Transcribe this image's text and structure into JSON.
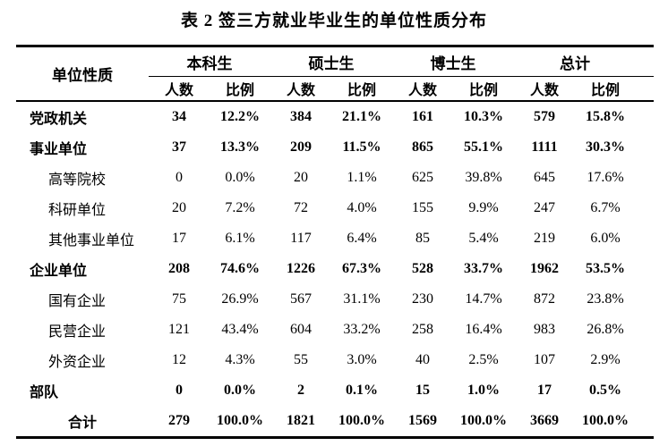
{
  "title": "表 2 签三方就业毕业生的单位性质分布",
  "table": {
    "row_header": "单位性质",
    "groups": [
      {
        "label": "本科生"
      },
      {
        "label": "硕士生"
      },
      {
        "label": "博士生"
      },
      {
        "label": "总计"
      }
    ],
    "subheaders": [
      "人数",
      "比例"
    ],
    "rows": [
      {
        "label": "党政机关",
        "style": "category",
        "values": [
          "34",
          "12.2%",
          "384",
          "21.1%",
          "161",
          "10.3%",
          "579",
          "15.8%"
        ]
      },
      {
        "label": "事业单位",
        "style": "category",
        "values": [
          "37",
          "13.3%",
          "209",
          "11.5%",
          "865",
          "55.1%",
          "1111",
          "30.3%"
        ]
      },
      {
        "label": "高等院校",
        "style": "sub",
        "values": [
          "0",
          "0.0%",
          "20",
          "1.1%",
          "625",
          "39.8%",
          "645",
          "17.6%"
        ]
      },
      {
        "label": "科研单位",
        "style": "sub",
        "values": [
          "20",
          "7.2%",
          "72",
          "4.0%",
          "155",
          "9.9%",
          "247",
          "6.7%"
        ]
      },
      {
        "label": "其他事业单位",
        "style": "sub",
        "values": [
          "17",
          "6.1%",
          "117",
          "6.4%",
          "85",
          "5.4%",
          "219",
          "6.0%"
        ]
      },
      {
        "label": "企业单位",
        "style": "category",
        "values": [
          "208",
          "74.6%",
          "1226",
          "67.3%",
          "528",
          "33.7%",
          "1962",
          "53.5%"
        ]
      },
      {
        "label": "国有企业",
        "style": "sub",
        "values": [
          "75",
          "26.9%",
          "567",
          "31.1%",
          "230",
          "14.7%",
          "872",
          "23.8%"
        ]
      },
      {
        "label": "民营企业",
        "style": "sub",
        "values": [
          "121",
          "43.4%",
          "604",
          "33.2%",
          "258",
          "16.4%",
          "983",
          "26.8%"
        ]
      },
      {
        "label": "外资企业",
        "style": "sub",
        "values": [
          "12",
          "4.3%",
          "55",
          "3.0%",
          "40",
          "2.5%",
          "107",
          "2.9%"
        ]
      },
      {
        "label": "部队",
        "style": "category",
        "values": [
          "0",
          "0.0%",
          "2",
          "0.1%",
          "15",
          "1.0%",
          "17",
          "0.5%"
        ]
      },
      {
        "label": "合计",
        "style": "total",
        "values": [
          "279",
          "100.0%",
          "1821",
          "100.0%",
          "1569",
          "100.0%",
          "3669",
          "100.0%"
        ]
      }
    ]
  },
  "colors": {
    "text": "#000000",
    "background": "#ffffff",
    "border": "#000000"
  }
}
